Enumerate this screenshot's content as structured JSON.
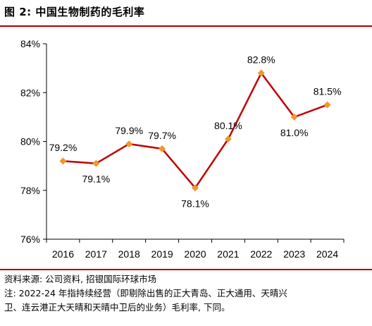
{
  "header": {
    "title": "图 2: 中国生物制药的毛利率"
  },
  "chart_data": {
    "type": "line",
    "title": "",
    "xlabel": "",
    "ylabel": "",
    "categories": [
      "2016",
      "2017",
      "2018",
      "2019",
      "2020",
      "2021",
      "2022",
      "2023",
      "2024"
    ],
    "series": [
      {
        "values": [
          79.2,
          79.1,
          79.9,
          79.7,
          78.1,
          80.1,
          82.8,
          81.0,
          81.5
        ],
        "labels": [
          "79.2%",
          "79.1%",
          "79.9%",
          "79.7%",
          "78.1%",
          "80.1%",
          "82.8%",
          "81.0%",
          "81.5%"
        ]
      }
    ],
    "ylim": [
      76,
      84
    ],
    "yticks": [
      76,
      78,
      80,
      82,
      84
    ],
    "ytick_labels": [
      "76%",
      "78%",
      "80%",
      "82%",
      "84%"
    ],
    "grid": false,
    "legend": "none",
    "colors": {
      "line": "#C00000",
      "marker": "#F0982B"
    }
  },
  "footer": {
    "source": "资料来源: 公司资料, 招银国际环球市场",
    "note_line1": "注: 2022-24 年指持续经营（即剔除出售的正大青岛、正大通用、天晴兴",
    "note_line2": "卫、连云港正大天晴和天晴中卫后的业务）毛利率, 下同。"
  }
}
